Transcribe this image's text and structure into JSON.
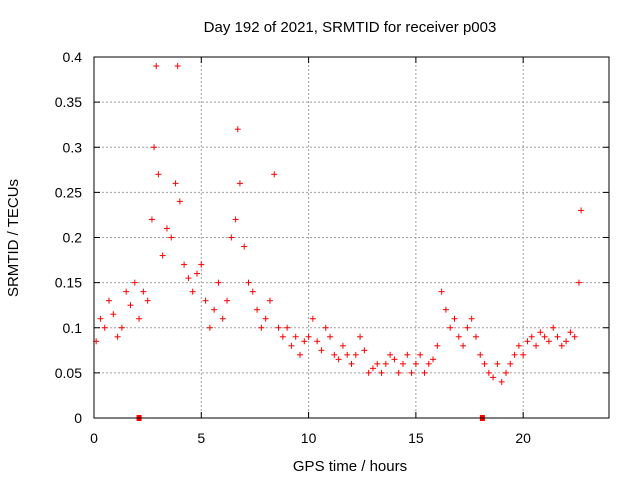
{
  "chart_data": {
    "type": "scatter",
    "title": "Day 192 of 2021, SRMTID for receiver p003",
    "xlabel": "GPS time / hours",
    "ylabel": "SRMTID / TECUs",
    "xlim": [
      0,
      24
    ],
    "ylim": [
      0,
      0.4
    ],
    "grid": true,
    "marker": "+",
    "color": "#ff0000",
    "x_ticks": [
      0,
      5,
      10,
      15,
      20
    ],
    "x_tick_labels": [
      "0",
      "5",
      "10",
      "15",
      "20"
    ],
    "y_ticks": [
      0,
      0.05,
      0.1,
      0.15,
      0.2,
      0.25,
      0.3,
      0.35,
      0.4
    ],
    "y_tick_labels": [
      "0",
      "0.05",
      "0.1",
      "0.15",
      "0.2",
      "0.25",
      "0.3",
      "0.35",
      "0.4"
    ],
    "zero_markers": [
      2.1,
      18.1
    ],
    "series": [
      {
        "name": "SRMTID",
        "x": [
          0.1,
          0.3,
          0.5,
          0.7,
          0.9,
          1.1,
          1.3,
          1.5,
          1.7,
          1.9,
          2.1,
          2.3,
          2.5,
          2.7,
          2.8,
          2.9,
          3.0,
          3.2,
          3.4,
          3.6,
          3.8,
          3.9,
          4.0,
          4.2,
          4.4,
          4.6,
          4.8,
          5.0,
          5.2,
          5.4,
          5.6,
          5.8,
          6.0,
          6.2,
          6.4,
          6.6,
          6.7,
          6.8,
          7.0,
          7.2,
          7.4,
          7.6,
          7.8,
          8.0,
          8.2,
          8.4,
          8.6,
          8.8,
          9.0,
          9.2,
          9.4,
          9.6,
          9.8,
          10.0,
          10.2,
          10.4,
          10.6,
          10.8,
          11.0,
          11.2,
          11.4,
          11.6,
          11.8,
          12.0,
          12.2,
          12.4,
          12.6,
          12.8,
          13.0,
          13.2,
          13.4,
          13.6,
          13.8,
          14.0,
          14.2,
          14.4,
          14.6,
          14.8,
          15.0,
          15.2,
          15.4,
          15.6,
          15.8,
          16.0,
          16.2,
          16.4,
          16.6,
          16.8,
          17.0,
          17.2,
          17.4,
          17.6,
          17.8,
          18.0,
          18.2,
          18.4,
          18.6,
          18.8,
          19.0,
          19.2,
          19.4,
          19.6,
          19.8,
          20.0,
          20.2,
          20.4,
          20.6,
          20.8,
          21.0,
          21.2,
          21.4,
          21.6,
          21.8,
          22.0,
          22.2,
          22.4,
          22.6,
          22.7
        ],
        "y": [
          0.085,
          0.11,
          0.1,
          0.13,
          0.115,
          0.09,
          0.1,
          0.14,
          0.125,
          0.15,
          0.11,
          0.14,
          0.13,
          0.22,
          0.3,
          0.39,
          0.27,
          0.18,
          0.21,
          0.2,
          0.26,
          0.39,
          0.24,
          0.17,
          0.155,
          0.14,
          0.16,
          0.17,
          0.13,
          0.1,
          0.12,
          0.15,
          0.11,
          0.13,
          0.2,
          0.22,
          0.32,
          0.26,
          0.19,
          0.15,
          0.14,
          0.12,
          0.1,
          0.11,
          0.13,
          0.27,
          0.1,
          0.09,
          0.1,
          0.08,
          0.09,
          0.07,
          0.085,
          0.09,
          0.11,
          0.085,
          0.075,
          0.1,
          0.09,
          0.07,
          0.065,
          0.08,
          0.07,
          0.06,
          0.07,
          0.09,
          0.075,
          0.05,
          0.055,
          0.06,
          0.05,
          0.06,
          0.07,
          0.065,
          0.05,
          0.06,
          0.07,
          0.05,
          0.06,
          0.07,
          0.05,
          0.06,
          0.065,
          0.08,
          0.14,
          0.12,
          0.1,
          0.11,
          0.09,
          0.08,
          0.1,
          0.11,
          0.09,
          0.07,
          0.06,
          0.05,
          0.045,
          0.06,
          0.04,
          0.05,
          0.06,
          0.07,
          0.08,
          0.07,
          0.085,
          0.09,
          0.08,
          0.095,
          0.09,
          0.085,
          0.1,
          0.09,
          0.08,
          0.085,
          0.095,
          0.09,
          0.15,
          0.23
        ]
      }
    ]
  }
}
